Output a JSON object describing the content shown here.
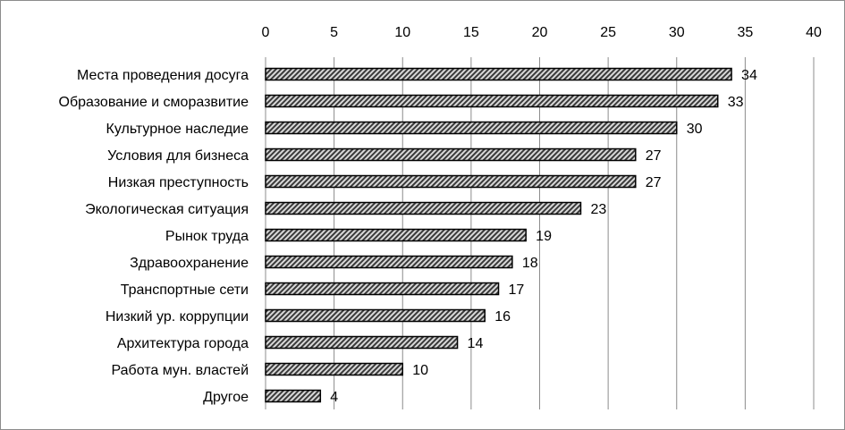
{
  "chart_data": {
    "type": "bar",
    "orientation": "horizontal",
    "title": "",
    "xlabel": "",
    "ylabel": "",
    "xlim": [
      0,
      40
    ],
    "ticks": [
      0,
      5,
      10,
      15,
      20,
      25,
      30,
      35,
      40
    ],
    "axis_position": "top",
    "grid": true,
    "legend": "none",
    "bar_fill": "diagonal-hatch",
    "colors": {
      "bar_stroke": "#000000",
      "hatch_dark": "#3a3a3a",
      "hatch_light": "#d9d9d9",
      "grid": "#8c8c8c"
    },
    "categories": [
      "Места проведения досуга",
      "Образование и сморазвитие",
      "Культурное наследие",
      "Условия для бизнеса",
      "Низкая преступность",
      "Экологическая ситуация",
      "Рынок труда",
      "Здравоохранение",
      "Транспортные сети",
      "Низкий ур. коррупции",
      "Архитектура города",
      "Работа мун. властей",
      "Другое"
    ],
    "values": [
      34,
      33,
      30,
      27,
      27,
      23,
      19,
      18,
      17,
      16,
      14,
      10,
      4
    ],
    "value_labels": [
      "34",
      "33",
      "30",
      "27",
      "27",
      "23",
      "19",
      "18",
      "17",
      "16",
      "14",
      "10",
      "4"
    ],
    "tick_labels": [
      "0",
      "5",
      "10",
      "15",
      "20",
      "25",
      "30",
      "35",
      "40"
    ]
  }
}
